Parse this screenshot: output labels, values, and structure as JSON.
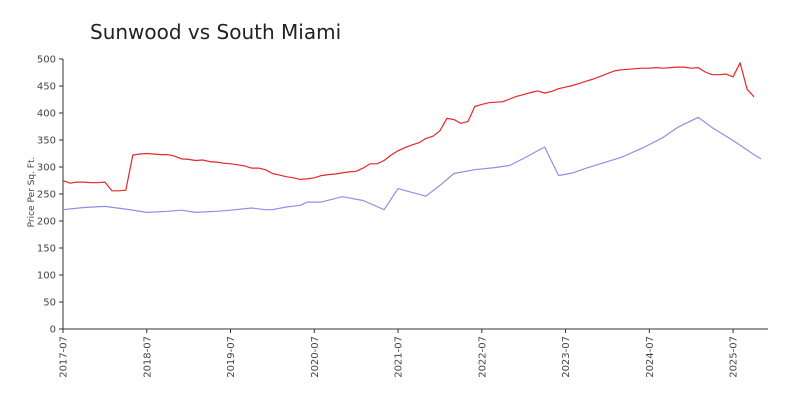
{
  "chart_data": {
    "type": "line",
    "title": "Sunwood vs South Miami",
    "xlabel": "",
    "ylabel": "Price Per Sq. Ft.",
    "ylim": [
      0,
      500
    ],
    "y_ticks": [
      0,
      50,
      100,
      150,
      200,
      250,
      300,
      350,
      400,
      450,
      500
    ],
    "xlim": [
      "2017-07",
      "2025-12"
    ],
    "x_ticks": [
      "2017-07",
      "2018-07",
      "2019-07",
      "2020-07",
      "2021-07",
      "2022-07",
      "2023-07",
      "2024-07",
      "2025-07"
    ],
    "grid": false,
    "legend": "none",
    "series": [
      {
        "color": "#e8262a",
        "points": [
          [
            "2017-07",
            275
          ],
          [
            "2017-08",
            270
          ],
          [
            "2017-09",
            272
          ],
          [
            "2017-10",
            272
          ],
          [
            "2017-11",
            271
          ],
          [
            "2017-12",
            271
          ],
          [
            "2018-01",
            272
          ],
          [
            "2018-02",
            256
          ],
          [
            "2018-03",
            256
          ],
          [
            "2018-04",
            257
          ],
          [
            "2018-05",
            322
          ],
          [
            "2018-06",
            324
          ],
          [
            "2018-07",
            325
          ],
          [
            "2018-08",
            324
          ],
          [
            "2018-09",
            323
          ],
          [
            "2018-10",
            323
          ],
          [
            "2018-11",
            320
          ],
          [
            "2018-12",
            315
          ],
          [
            "2019-01",
            314
          ],
          [
            "2019-02",
            312
          ],
          [
            "2019-03",
            313
          ],
          [
            "2019-04",
            310
          ],
          [
            "2019-05",
            309
          ],
          [
            "2019-06",
            307
          ],
          [
            "2019-07",
            306
          ],
          [
            "2019-08",
            304
          ],
          [
            "2019-09",
            302
          ],
          [
            "2019-10",
            298
          ],
          [
            "2019-11",
            298
          ],
          [
            "2019-12",
            295
          ],
          [
            "2020-01",
            288
          ],
          [
            "2020-02",
            285
          ],
          [
            "2020-03",
            282
          ],
          [
            "2020-04",
            280
          ],
          [
            "2020-05",
            277
          ],
          [
            "2020-06",
            278
          ],
          [
            "2020-07",
            280
          ],
          [
            "2020-08",
            284
          ],
          [
            "2020-09",
            286
          ],
          [
            "2020-10",
            287
          ],
          [
            "2020-11",
            289
          ],
          [
            "2020-12",
            291
          ],
          [
            "2021-01",
            292
          ],
          [
            "2021-02",
            298
          ],
          [
            "2021-03",
            306
          ],
          [
            "2021-04",
            306
          ],
          [
            "2021-05",
            312
          ],
          [
            "2021-06",
            322
          ],
          [
            "2021-07",
            330
          ],
          [
            "2021-08",
            336
          ],
          [
            "2021-09",
            341
          ],
          [
            "2021-10",
            345
          ],
          [
            "2021-11",
            353
          ],
          [
            "2021-12",
            357
          ],
          [
            "2022-01",
            367
          ],
          [
            "2022-02",
            390
          ],
          [
            "2022-03",
            388
          ],
          [
            "2022-04",
            381
          ],
          [
            "2022-05",
            384
          ],
          [
            "2022-06",
            412
          ],
          [
            "2022-07",
            416
          ],
          [
            "2022-08",
            419
          ],
          [
            "2022-09",
            420
          ],
          [
            "2022-10",
            421
          ],
          [
            "2022-11",
            426
          ],
          [
            "2022-12",
            431
          ],
          [
            "2023-01",
            434
          ],
          [
            "2023-02",
            438
          ],
          [
            "2023-03",
            441
          ],
          [
            "2023-04",
            437
          ],
          [
            "2023-05",
            440
          ],
          [
            "2023-06",
            445
          ],
          [
            "2023-07",
            448
          ],
          [
            "2023-08",
            451
          ],
          [
            "2023-09",
            455
          ],
          [
            "2023-10",
            459
          ],
          [
            "2023-11",
            463
          ],
          [
            "2023-12",
            468
          ],
          [
            "2024-01",
            473
          ],
          [
            "2024-02",
            478
          ],
          [
            "2024-03",
            480
          ],
          [
            "2024-04",
            481
          ],
          [
            "2024-05",
            482
          ],
          [
            "2024-06",
            483
          ],
          [
            "2024-07",
            483
          ],
          [
            "2024-08",
            484
          ],
          [
            "2024-09",
            483
          ],
          [
            "2024-10",
            484
          ],
          [
            "2024-11",
            485
          ],
          [
            "2024-12",
            485
          ],
          [
            "2025-01",
            483
          ],
          [
            "2025-02",
            484
          ],
          [
            "2025-03",
            476
          ],
          [
            "2025-04",
            471
          ],
          [
            "2025-05",
            471
          ],
          [
            "2025-06",
            472
          ],
          [
            "2025-07",
            467
          ],
          [
            "2025-08",
            493
          ],
          [
            "2025-09",
            444
          ],
          [
            "2025-10",
            430
          ]
        ]
      },
      {
        "color": "#8f8fe6",
        "points": [
          [
            "2017-07",
            221
          ],
          [
            "2017-10",
            225
          ],
          [
            "2018-01",
            227
          ],
          [
            "2018-04",
            222
          ],
          [
            "2018-07",
            216
          ],
          [
            "2018-10",
            218
          ],
          [
            "2018-12",
            220
          ],
          [
            "2019-02",
            216
          ],
          [
            "2019-05",
            218
          ],
          [
            "2019-07",
            220
          ],
          [
            "2019-10",
            224
          ],
          [
            "2019-12",
            221
          ],
          [
            "2020-01",
            221
          ],
          [
            "2020-03",
            226
          ],
          [
            "2020-05",
            229
          ],
          [
            "2020-06",
            235
          ],
          [
            "2020-08",
            235
          ],
          [
            "2020-11",
            245
          ],
          [
            "2021-02",
            238
          ],
          [
            "2021-05",
            221
          ],
          [
            "2021-07",
            260
          ],
          [
            "2021-09",
            253
          ],
          [
            "2021-11",
            246
          ],
          [
            "2022-01",
            266
          ],
          [
            "2022-03",
            288
          ],
          [
            "2022-06",
            295
          ],
          [
            "2022-09",
            299
          ],
          [
            "2022-11",
            303
          ],
          [
            "2023-01",
            316
          ],
          [
            "2023-04",
            337
          ],
          [
            "2023-06",
            284
          ],
          [
            "2023-08",
            289
          ],
          [
            "2023-10",
            298
          ],
          [
            "2024-01",
            310
          ],
          [
            "2024-03",
            318
          ],
          [
            "2024-06",
            335
          ],
          [
            "2024-09",
            355
          ],
          [
            "2024-11",
            373
          ],
          [
            "2025-02",
            392
          ],
          [
            "2025-04",
            373
          ],
          [
            "2025-07",
            349
          ],
          [
            "2025-10",
            323
          ],
          [
            "2025-11",
            315
          ]
        ]
      }
    ]
  }
}
